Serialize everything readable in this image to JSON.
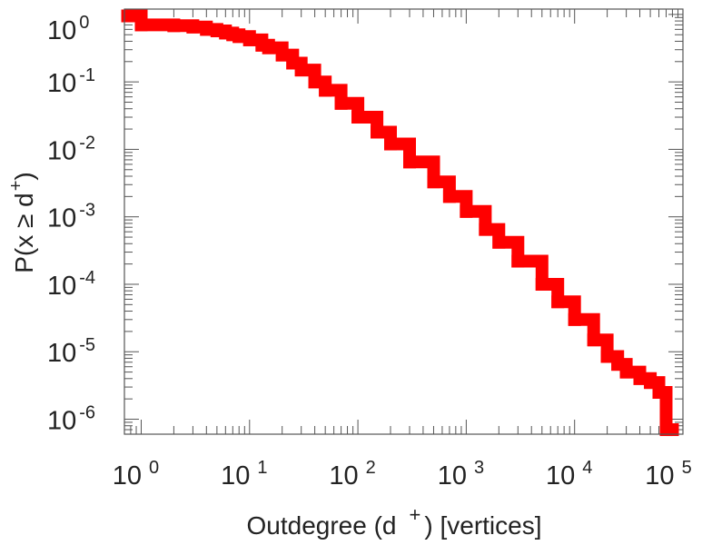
{
  "chart_data": {
    "type": "line",
    "title": "",
    "xlabel": "Outdegree (d  ) [vertices]",
    "xlabel_parts": {
      "before": "Outdegree (d",
      "superscript": "+",
      "after": ") [vertices]"
    },
    "ylabel": "P(x ≥ d )",
    "ylabel_parts": {
      "before": "P(x ≥ d",
      "superscript": "+",
      "after": ")"
    },
    "xscale": "log",
    "yscale": "log",
    "xlim": [
      0.7,
      100000
    ],
    "ylim": [
      6e-07,
      1.2
    ],
    "x_ticks": [
      {
        "base": "10",
        "exp": "0"
      },
      {
        "base": "10",
        "exp": "1"
      },
      {
        "base": "10",
        "exp": "2"
      },
      {
        "base": "10",
        "exp": "3"
      },
      {
        "base": "10",
        "exp": "4"
      },
      {
        "base": "10",
        "exp": "5"
      }
    ],
    "y_ticks": [
      {
        "base": "10",
        "exp": "0"
      },
      {
        "base": "10",
        "exp": "-1"
      },
      {
        "base": "10",
        "exp": "-2"
      },
      {
        "base": "10",
        "exp": "-3"
      },
      {
        "base": "10",
        "exp": "-4"
      },
      {
        "base": "10",
        "exp": "-5"
      },
      {
        "base": "10",
        "exp": "-6"
      }
    ],
    "grid": false,
    "legend": "none",
    "series": [
      {
        "color": "#ff0000",
        "x": [
          0.75,
          1,
          2,
          3,
          4,
          5,
          6,
          7,
          8,
          10,
          13,
          15,
          20,
          25,
          30,
          40,
          50,
          70,
          100,
          150,
          200,
          300,
          500,
          700,
          1000,
          1500,
          2000,
          3000,
          5000,
          7000,
          10000,
          15000,
          20000,
          25000,
          30000,
          40000,
          50000,
          60000,
          70000,
          80000
        ],
        "y": [
          0.95,
          0.7,
          0.68,
          0.65,
          0.6,
          0.57,
          0.53,
          0.5,
          0.47,
          0.42,
          0.35,
          0.32,
          0.25,
          0.19,
          0.15,
          0.1,
          0.075,
          0.048,
          0.03,
          0.018,
          0.012,
          0.0065,
          0.0033,
          0.002,
          0.0012,
          0.00065,
          0.00042,
          0.00022,
          0.0001,
          5.5e-05,
          3e-05,
          1.5e-05,
          8.5e-06,
          6.5e-06,
          5e-06,
          4e-06,
          3.5e-06,
          2.5e-06,
          7e-07,
          7e-07
        ]
      }
    ]
  }
}
